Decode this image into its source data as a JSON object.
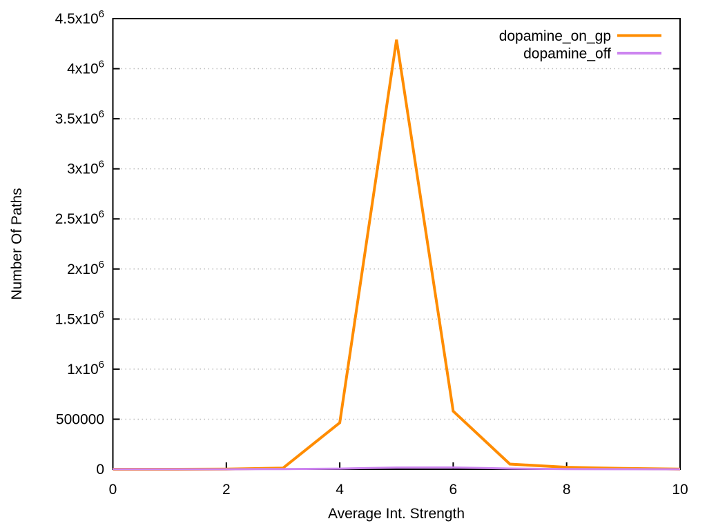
{
  "figure": {
    "background": "#ffffff",
    "border_color": "#000000",
    "grid_color": "#bdbdbd",
    "text_color": "#000000"
  },
  "chart_data": {
    "type": "line",
    "title": "",
    "xlabel": "Average Int. Strength",
    "ylabel": "Number Of Paths",
    "xlim": [
      0,
      10
    ],
    "ylim": [
      0,
      4500000
    ],
    "grid": "horizontal dotted gridlines at every y tick, no vertical gridlines",
    "legend_position": "top-right inside plot, right-aligned labels with line swatches",
    "x": [
      0,
      1,
      2,
      3,
      4,
      5,
      6,
      7,
      8,
      9,
      10
    ],
    "series": [
      {
        "name": "dopamine_on_gp",
        "color": "#ff8c00",
        "line_width": 4,
        "values": [
          0,
          0,
          2000,
          12000,
          465000,
          4290000,
          580000,
          52000,
          20000,
          8000,
          2000
        ]
      },
      {
        "name": "dopamine_off",
        "color": "#cd85f0",
        "line_width": 3,
        "values": [
          0,
          0,
          0,
          2000,
          6000,
          17000,
          18000,
          7000,
          2000,
          500,
          0
        ]
      }
    ],
    "x_ticks": {
      "values": [
        0,
        2,
        4,
        6,
        8,
        10
      ],
      "labels": [
        "0",
        "2",
        "4",
        "6",
        "8",
        "10"
      ]
    },
    "y_ticks": {
      "values": [
        0,
        500000,
        1000000,
        1500000,
        2000000,
        2500000,
        3000000,
        3500000,
        4000000,
        4500000
      ],
      "labels": [
        "0",
        "500000",
        "1x10^6",
        "1.5x10^6",
        "2x10^6",
        "2.5x10^6",
        "3x10^6",
        "3.5x10^6",
        "4x10^6",
        "4.5x10^6"
      ]
    }
  }
}
